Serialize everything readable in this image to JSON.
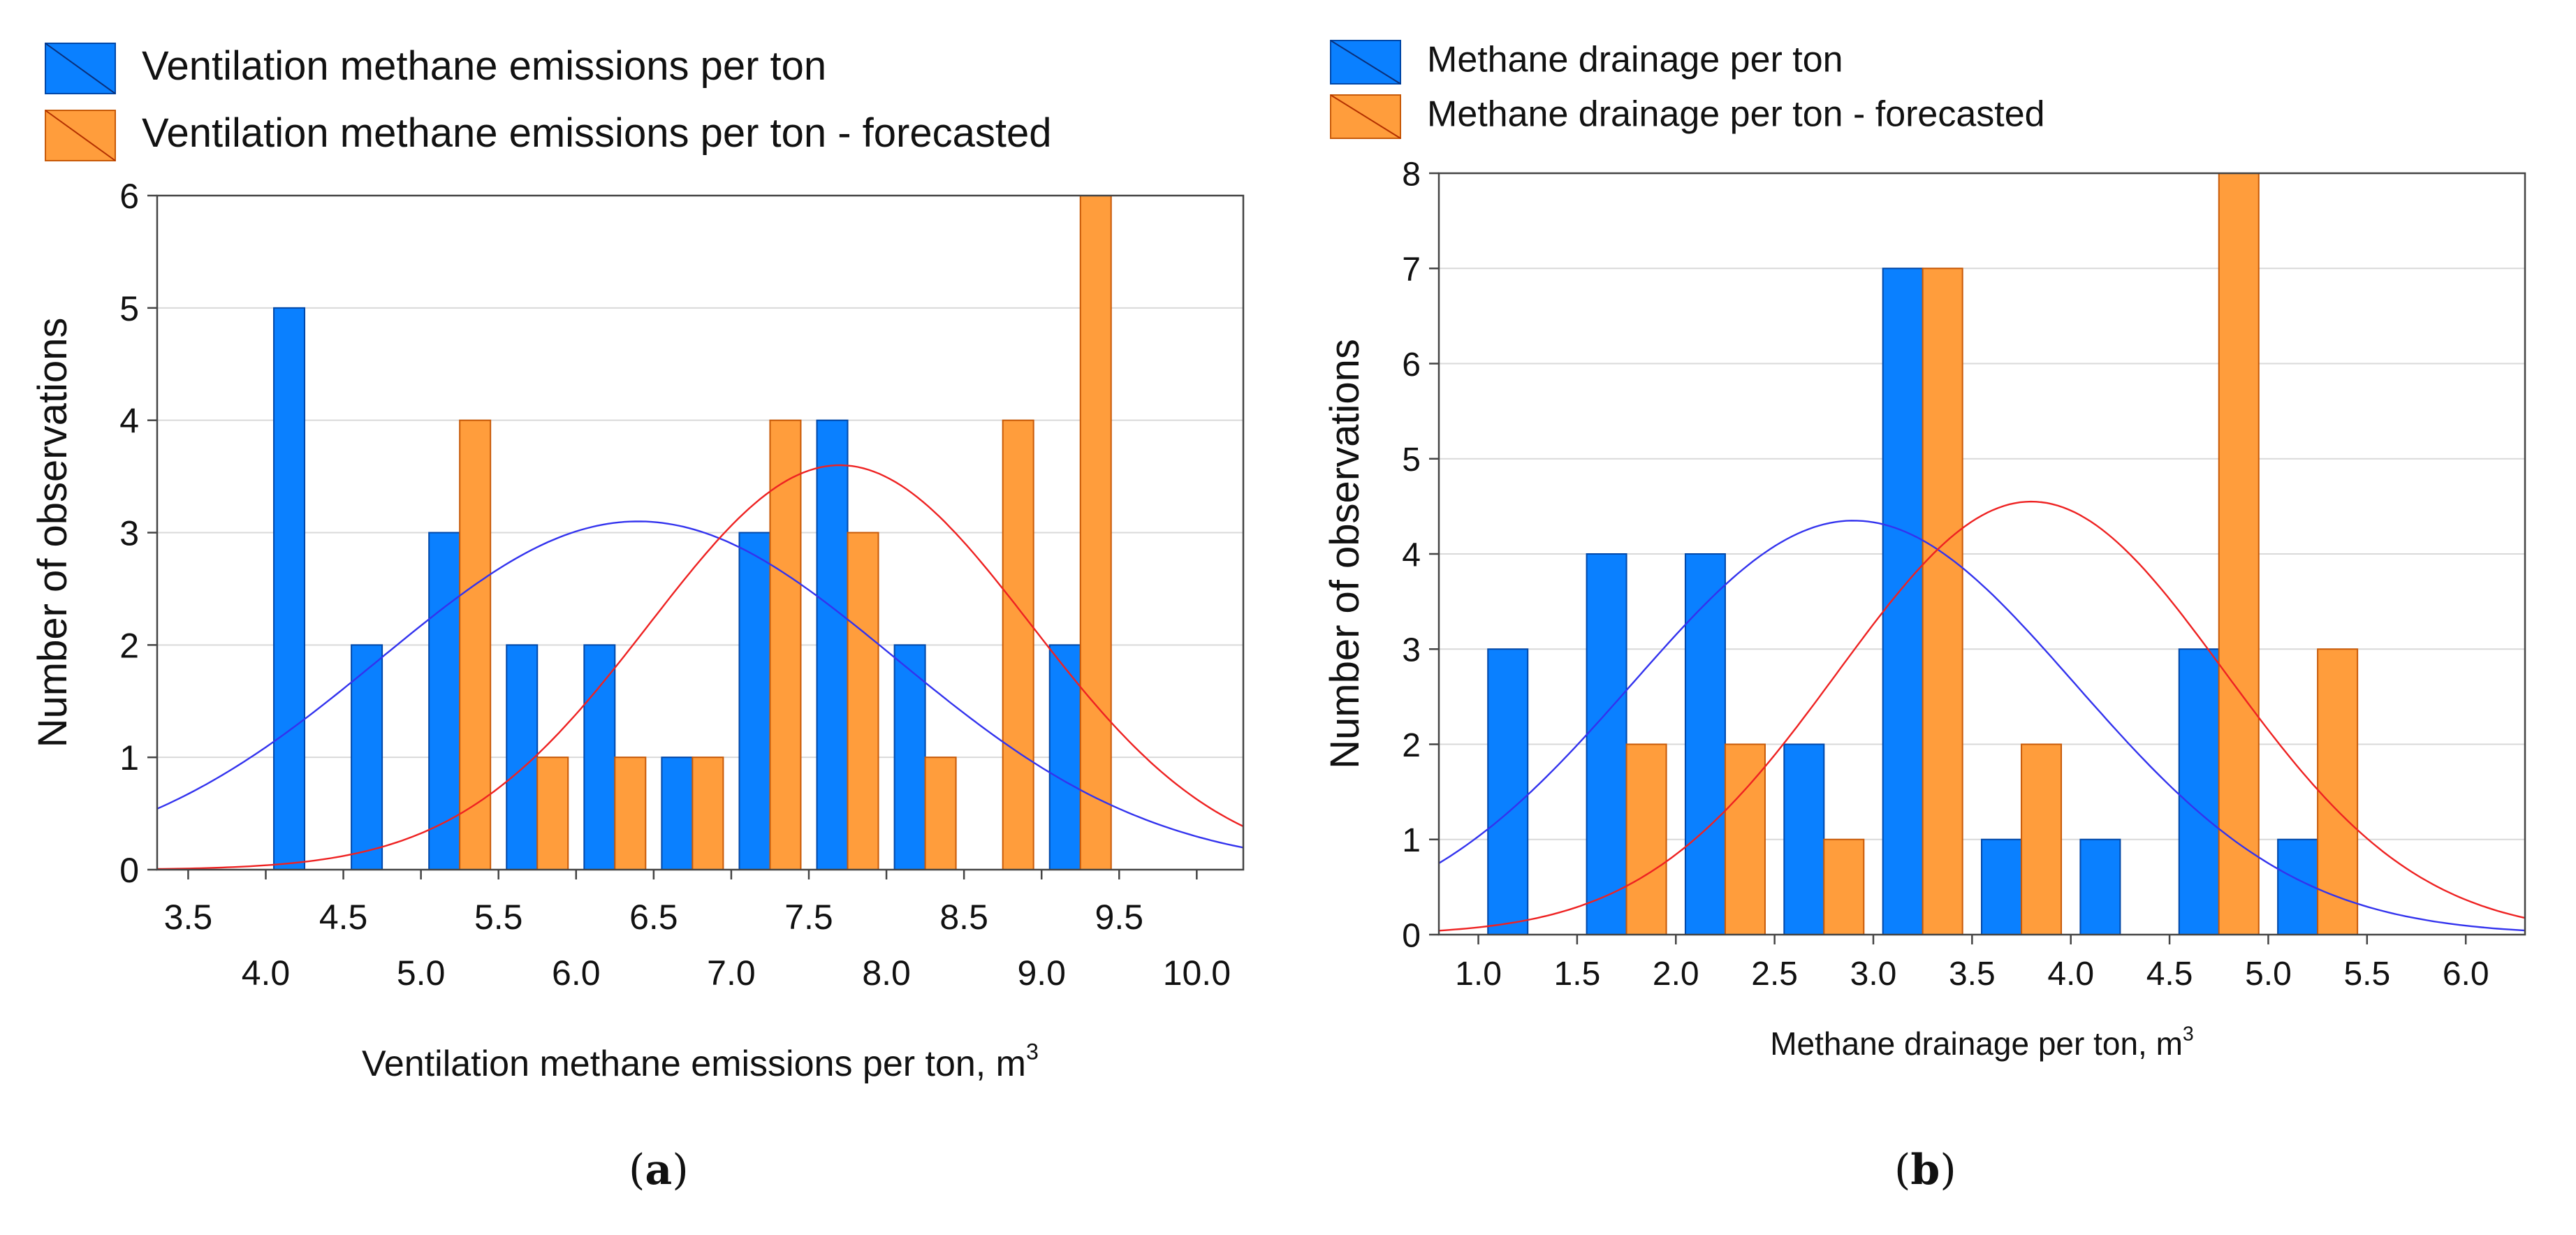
{
  "colors": {
    "observed_bar": "#0a80ff",
    "observed_bar_stroke": "#0047a8",
    "forecast_bar": "#ff9d3c",
    "forecast_bar_stroke": "#c85a08",
    "observed_curve": "#3333ee",
    "forecast_curve": "#ee2222",
    "grid": "#d9d9d9",
    "axis": "#444444"
  },
  "chart_data": [
    {
      "panel": "a",
      "type": "bar",
      "caption": "a",
      "xlabel": "Ventilation methane emissions per ton, m",
      "xlabel_sup": "3",
      "ylabel": "Number of observations",
      "xlim": [
        3.3,
        10.3
      ],
      "ylim": [
        0,
        6
      ],
      "yticks": [
        0,
        1,
        2,
        3,
        4,
        5,
        6
      ],
      "xticks_upper": [
        "3.5",
        "4.5",
        "5.5",
        "6.5",
        "7.5",
        "8.5",
        "9.5"
      ],
      "xticks_lower": [
        "4.0",
        "5.0",
        "6.0",
        "7.0",
        "8.0",
        "9.0",
        "10.0"
      ],
      "grid": true,
      "legend_position": "top",
      "series": [
        {
          "name": "Ventilation methane emissions per ton",
          "role": "observed",
          "x": [
            4.25,
            4.75,
            5.25,
            5.75,
            6.25,
            6.75,
            7.25,
            7.75,
            8.25,
            9.25
          ],
          "values": [
            5,
            2,
            3,
            2,
            2,
            1,
            3,
            4,
            2,
            2
          ]
        },
        {
          "name": "Ventilation methane emissions per ton - forecasted",
          "role": "forecast",
          "x": [
            5.25,
            5.75,
            6.25,
            6.75,
            7.25,
            7.75,
            8.25,
            8.75,
            9.25
          ],
          "values": [
            4,
            1,
            1,
            1,
            4,
            3,
            1,
            4,
            6
          ]
        }
      ],
      "curves": [
        {
          "series": "observed",
          "peak_x": 6.4,
          "peak_y": 3.1,
          "sigma": 1.66
        },
        {
          "series": "forecast",
          "peak_x": 7.7,
          "peak_y": 3.6,
          "sigma": 1.23
        }
      ]
    },
    {
      "panel": "b",
      "type": "bar",
      "caption": "b",
      "xlabel": "Methane drainage per ton, m",
      "xlabel_sup": "3",
      "ylabel": "Number of observations",
      "xlim": [
        0.8,
        6.3
      ],
      "ylim": [
        0,
        8
      ],
      "yticks": [
        0,
        1,
        2,
        3,
        4,
        5,
        6,
        7,
        8
      ],
      "xticks_labels": [
        "1.0",
        "1.5",
        "2.0",
        "2.5",
        "3.0",
        "3.5",
        "4.0",
        "4.5",
        "5.0",
        "5.5",
        "6.0"
      ],
      "grid": true,
      "legend_position": "top",
      "series": [
        {
          "name": "Methane drainage per ton",
          "role": "observed",
          "x": [
            1.25,
            1.75,
            2.25,
            2.75,
            3.25,
            3.75,
            4.25,
            4.75,
            5.25
          ],
          "values": [
            3,
            4,
            4,
            2,
            7,
            1,
            1,
            3,
            1
          ]
        },
        {
          "name": "Methane drainage per ton - forecasted",
          "role": "forecast",
          "x": [
            1.75,
            2.25,
            2.75,
            3.25,
            3.75,
            4.75,
            5.25
          ],
          "values": [
            2,
            2,
            1,
            7,
            2,
            8,
            3
          ]
        }
      ],
      "curves": [
        {
          "series": "observed",
          "peak_x": 2.9,
          "peak_y": 4.35,
          "sigma": 1.12
        },
        {
          "series": "forecast",
          "peak_x": 3.8,
          "peak_y": 4.55,
          "sigma": 0.98
        }
      ]
    }
  ]
}
